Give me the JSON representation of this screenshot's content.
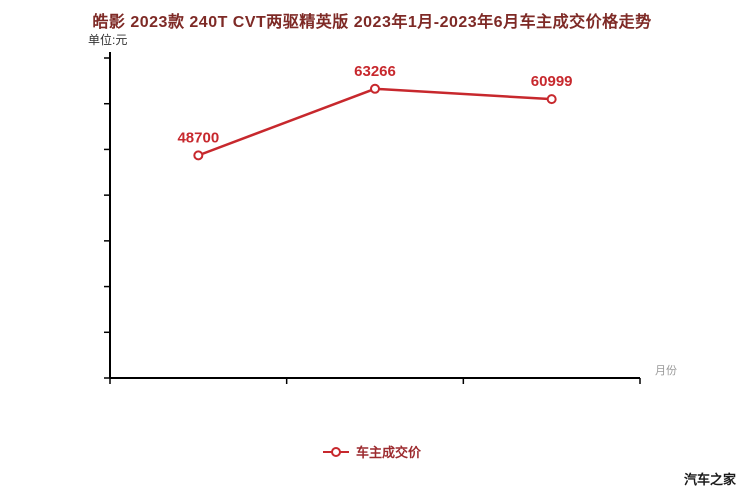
{
  "page": {
    "watermark": "汽车之家"
  },
  "chart_data": {
    "type": "line",
    "title": "皓影 2023款 240T CVT两驱精英版 2023年1月-2023年6月车主成交价格走势",
    "unit_label": "单位:元",
    "x_axis_label": "月份",
    "legend_label": "车主成交价",
    "accent_color": "#c7282d",
    "axis_color": "#000000",
    "series": [
      {
        "name": "车主成交价",
        "color": "#c7282d",
        "values": [
          48700,
          63266,
          60999
        ]
      }
    ],
    "ylim": [
      0,
      70000
    ],
    "y_tick_count": 7,
    "grid": false,
    "legend_position": "bottom"
  }
}
